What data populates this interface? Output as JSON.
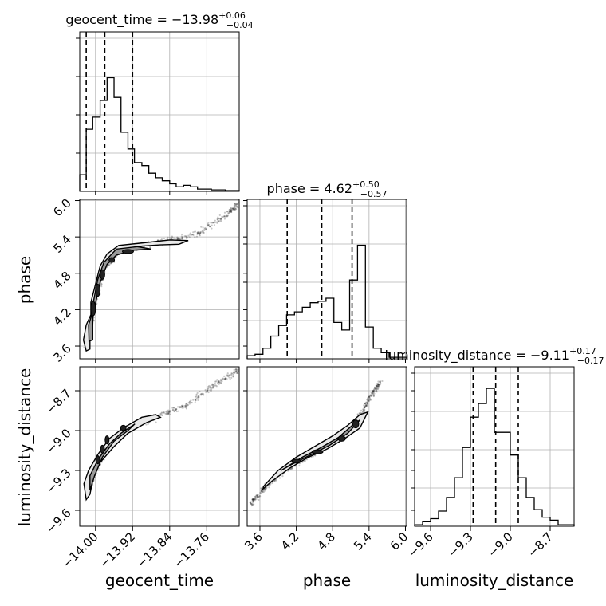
{
  "chart_data": {
    "type": "corner",
    "parameters": [
      "geocent_time",
      "phase",
      "luminosity_distance"
    ],
    "titles": [
      {
        "param": "geocent_time",
        "prefix": "geocent_time = ",
        "median": "−13.98",
        "plus": "+0.06",
        "minus": "−0.04"
      },
      {
        "param": "phase",
        "prefix": "phase = ",
        "median": "4.62",
        "plus": "+0.50",
        "minus": "−0.57"
      },
      {
        "param": "luminosity_distance",
        "prefix": "luminosity_distance = ",
        "median": "−9.11",
        "plus": "+0.17",
        "minus": "−0.17"
      }
    ],
    "axis_labels": [
      "geocent_time",
      "phase",
      "luminosity_distance"
    ],
    "y_axis_labels": [
      "phase",
      "luminosity_distance"
    ],
    "ranges": {
      "geocent_time": [
        -14.034,
        -13.69
      ],
      "phase": [
        3.39,
        6.02
      ],
      "luminosity_distance": [
        -9.72,
        -8.52
      ]
    },
    "ticks": {
      "geocent_time": {
        "values": [
          -14.0,
          -13.92,
          -13.84,
          -13.76
        ],
        "labels": [
          "−14.00",
          "−13.92",
          "−13.84",
          "−13.76"
        ]
      },
      "phase": {
        "values": [
          3.6,
          4.2,
          4.8,
          5.4,
          6.0
        ],
        "labels": [
          "3.6",
          "4.2",
          "4.8",
          "5.4",
          "6.0"
        ]
      },
      "luminosity_distance": {
        "values": [
          -9.6,
          -9.3,
          -9.0,
          -8.7
        ],
        "labels": [
          "−9.6",
          "−9.3",
          "−9.0",
          "−8.7"
        ]
      }
    },
    "quantiles": {
      "geocent_time": [
        -14.02,
        -13.98,
        -13.92
      ],
      "phase": [
        4.05,
        4.62,
        5.12
      ],
      "luminosity_distance": [
        -9.28,
        -9.11,
        -8.94
      ]
    },
    "histograms": {
      "geocent_time": {
        "edges": [
          -14.034,
          -14.02,
          -14.006,
          -13.99,
          -13.975,
          -13.96,
          -13.945,
          -13.93,
          -13.916,
          -13.9,
          -13.885,
          -13.87,
          -13.856,
          -13.84,
          -13.826,
          -13.81,
          -13.795,
          -13.78,
          -13.766,
          -13.75,
          -13.735,
          -13.72,
          -13.706,
          -13.69
        ],
        "counts": [
          0.11,
          0.41,
          0.49,
          0.6,
          0.75,
          0.62,
          0.39,
          0.28,
          0.19,
          0.17,
          0.12,
          0.09,
          0.07,
          0.05,
          0.03,
          0.04,
          0.03,
          0.015,
          0.015,
          0.01,
          0.01,
          0.005,
          0.005
        ]
      },
      "phase": {
        "edges": [
          3.39,
          3.52,
          3.65,
          3.78,
          3.91,
          4.04,
          4.17,
          4.3,
          4.43,
          4.56,
          4.69,
          4.82,
          4.95,
          5.08,
          5.21,
          5.34,
          5.47,
          5.6,
          5.73,
          5.86,
          6.02
        ],
        "counts": [
          0.02,
          0.03,
          0.07,
          0.15,
          0.22,
          0.29,
          0.31,
          0.34,
          0.37,
          0.38,
          0.4,
          0.24,
          0.19,
          0.52,
          0.75,
          0.21,
          0.07,
          0.04,
          0.01,
          0.01
        ]
      },
      "luminosity_distance": {
        "edges": [
          -9.72,
          -9.66,
          -9.6,
          -9.54,
          -9.48,
          -9.42,
          -9.36,
          -9.3,
          -9.24,
          -9.18,
          -9.12,
          -9.06,
          -9.0,
          -8.94,
          -8.88,
          -8.82,
          -8.76,
          -8.7,
          -8.64,
          -8.58,
          -8.52
        ],
        "counts": [
          0.01,
          0.03,
          0.05,
          0.1,
          0.19,
          0.32,
          0.52,
          0.72,
          0.81,
          0.91,
          0.62,
          0.62,
          0.47,
          0.32,
          0.19,
          0.11,
          0.06,
          0.04,
          0.01,
          0.01
        ]
      }
    },
    "pairs": [
      {
        "x": "geocent_time",
        "y": "phase",
        "contour_outer": [
          [
            -14.02,
            3.52
          ],
          [
            -14.026,
            3.7
          ],
          [
            -14.02,
            3.95
          ],
          [
            -14.005,
            4.2
          ],
          [
            -13.995,
            4.55
          ],
          [
            -13.985,
            4.85
          ],
          [
            -13.965,
            5.05
          ],
          [
            -13.94,
            5.18
          ],
          [
            -13.9,
            5.25
          ],
          [
            -13.86,
            5.27
          ],
          [
            -13.82,
            5.28
          ],
          [
            -13.8,
            5.34
          ],
          [
            -13.84,
            5.35
          ],
          [
            -13.9,
            5.3
          ],
          [
            -13.95,
            5.26
          ],
          [
            -13.975,
            5.12
          ],
          [
            -13.99,
            4.92
          ],
          [
            -14.0,
            4.62
          ],
          [
            -14.01,
            4.32
          ],
          [
            -14.01,
            4.0
          ],
          [
            -14.012,
            3.7
          ],
          [
            -14.012,
            3.55
          ]
        ],
        "contour_inner": [
          [
            -14.014,
            3.68
          ],
          [
            -14.015,
            3.95
          ],
          [
            -14.0,
            4.3
          ],
          [
            -13.99,
            4.65
          ],
          [
            -13.975,
            4.95
          ],
          [
            -13.955,
            5.1
          ],
          [
            -13.92,
            5.18
          ],
          [
            -13.88,
            5.2
          ],
          [
            -13.91,
            5.24
          ],
          [
            -13.955,
            5.2
          ],
          [
            -13.982,
            4.98
          ],
          [
            -13.995,
            4.7
          ],
          [
            -14.004,
            4.35
          ],
          [
            -14.006,
            3.95
          ],
          [
            -14.006,
            3.7
          ]
        ],
        "blobs": [
          [
            -13.93,
            5.16,
            0.012,
            0.03
          ],
          [
            -13.965,
            5.02,
            0.006,
            0.04
          ],
          [
            -13.985,
            4.78,
            0.005,
            0.08
          ],
          [
            -13.995,
            4.52,
            0.005,
            0.1
          ],
          [
            -14.005,
            4.22,
            0.005,
            0.12
          ]
        ],
        "scatter_trend": [
          [
            -14.02,
            3.55
          ],
          [
            -14.01,
            4.0
          ],
          [
            -13.995,
            4.5
          ],
          [
            -13.98,
            4.9
          ],
          [
            -13.95,
            5.15
          ],
          [
            -13.9,
            5.27
          ],
          [
            -13.84,
            5.34
          ],
          [
            -13.78,
            5.45
          ],
          [
            -13.72,
            5.75
          ],
          [
            -13.69,
            5.95
          ]
        ]
      },
      {
        "x": "geocent_time",
        "y": "luminosity_distance",
        "contour_outer": [
          [
            -14.02,
            -9.52
          ],
          [
            -14.025,
            -9.4
          ],
          [
            -14.015,
            -9.3
          ],
          [
            -13.995,
            -9.18
          ],
          [
            -13.97,
            -9.06
          ],
          [
            -13.94,
            -8.98
          ],
          [
            -13.9,
            -8.9
          ],
          [
            -13.87,
            -8.88
          ],
          [
            -13.86,
            -8.9
          ],
          [
            -13.89,
            -8.94
          ],
          [
            -13.93,
            -9.02
          ],
          [
            -13.96,
            -9.12
          ],
          [
            -13.99,
            -9.24
          ],
          [
            -14.005,
            -9.36
          ],
          [
            -14.012,
            -9.48
          ]
        ],
        "contour_inner": [
          [
            -14.012,
            -9.45
          ],
          [
            -14.012,
            -9.34
          ],
          [
            -13.995,
            -9.22
          ],
          [
            -13.97,
            -9.1
          ],
          [
            -13.945,
            -9.02
          ],
          [
            -13.915,
            -8.95
          ],
          [
            -13.93,
            -9.0
          ],
          [
            -13.96,
            -9.08
          ],
          [
            -13.985,
            -9.2
          ],
          [
            -14.002,
            -9.34
          ]
        ],
        "blobs": [
          [
            -13.995,
            -9.22,
            0.004,
            0.03
          ],
          [
            -13.985,
            -9.14,
            0.004,
            0.03
          ],
          [
            -13.975,
            -9.07,
            0.004,
            0.03
          ],
          [
            -13.94,
            -8.98,
            0.006,
            0.02
          ]
        ],
        "scatter_trend": [
          [
            -14.02,
            -9.5
          ],
          [
            -14.0,
            -9.3
          ],
          [
            -13.97,
            -9.1
          ],
          [
            -13.93,
            -8.98
          ],
          [
            -13.86,
            -8.89
          ],
          [
            -13.8,
            -8.8
          ],
          [
            -13.74,
            -8.65
          ],
          [
            -13.69,
            -8.54
          ]
        ]
      },
      {
        "x": "phase",
        "y": "luminosity_distance",
        "contour_outer": [
          [
            3.66,
            -9.42
          ],
          [
            3.9,
            -9.3
          ],
          [
            4.2,
            -9.2
          ],
          [
            4.5,
            -9.12
          ],
          [
            4.8,
            -9.04
          ],
          [
            5.05,
            -8.96
          ],
          [
            5.25,
            -8.88
          ],
          [
            5.38,
            -8.86
          ],
          [
            5.25,
            -8.98
          ],
          [
            5.0,
            -9.06
          ],
          [
            4.7,
            -9.14
          ],
          [
            4.4,
            -9.2
          ],
          [
            4.1,
            -9.28
          ],
          [
            3.8,
            -9.38
          ],
          [
            3.65,
            -9.44
          ]
        ],
        "contour_inner": [
          [
            3.95,
            -9.3
          ],
          [
            4.3,
            -9.2
          ],
          [
            4.6,
            -9.13
          ],
          [
            4.9,
            -9.05
          ],
          [
            5.15,
            -8.95
          ],
          [
            5.25,
            -8.92
          ],
          [
            5.05,
            -9.02
          ],
          [
            4.75,
            -9.11
          ],
          [
            4.45,
            -9.18
          ],
          [
            4.1,
            -9.26
          ]
        ],
        "blobs": [
          [
            4.2,
            -9.23,
            0.07,
            0.015
          ],
          [
            4.55,
            -9.16,
            0.09,
            0.015
          ],
          [
            4.95,
            -9.06,
            0.06,
            0.02
          ],
          [
            5.18,
            -8.95,
            0.05,
            0.03
          ]
        ],
        "scatter_trend": [
          [
            3.45,
            -9.55
          ],
          [
            3.7,
            -9.42
          ],
          [
            4.0,
            -9.3
          ],
          [
            4.4,
            -9.2
          ],
          [
            4.8,
            -9.08
          ],
          [
            5.2,
            -8.93
          ],
          [
            5.4,
            -8.76
          ],
          [
            5.6,
            -8.62
          ]
        ]
      }
    ],
    "grid": true
  }
}
